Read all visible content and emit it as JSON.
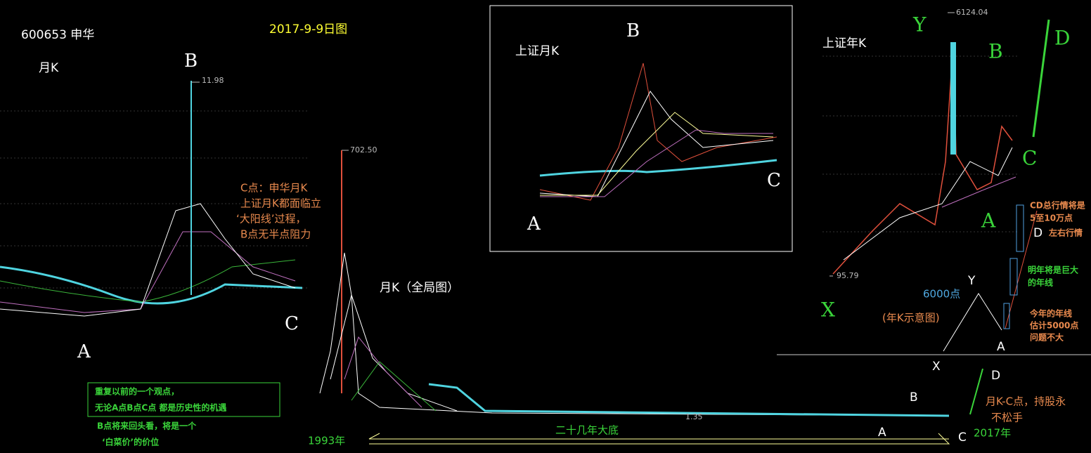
{
  "left": {
    "code": "600653 申华",
    "period": "月K",
    "date": "2017-9-9日图",
    "b": "B",
    "high": "11.98",
    "c": "C",
    "a": "A",
    "note": [
      "C点：申华月K",
      "上证月K都面临立",
      "‘大阳线’过程，",
      "B点无半点阻力"
    ]
  },
  "middle": {
    "high": "702.50",
    "title": "月K（全局图）",
    "low": "1.35",
    "box": [
      "重复以前的一个观点，",
      "无论A点B点C点 都是历史性的机遇"
    ],
    "below": [
      "B点将来回头看，将是一个",
      "‘白菜价’的价位"
    ],
    "start": "1993年",
    "bottom": "二十几年大底",
    "end": "2017年",
    "b": "B",
    "a": "A",
    "c": "C",
    "d": "D",
    "x": "X",
    "note": [
      "月K-C点，持股永",
      "不松手"
    ]
  },
  "inset": {
    "title": "上证月K",
    "b": "B",
    "c": "C",
    "a": "A"
  },
  "right": {
    "title": "上证年K",
    "y": "Y",
    "high": "6124.04",
    "b": "B",
    "d": "D",
    "c": "C",
    "a": "A",
    "low": "95.79",
    "x": "X",
    "cd": [
      "CD总行情将是",
      "5至10万点"
    ],
    "d2": "D",
    "d2note": "左右行情",
    "six": "6000点",
    "y2": "Y",
    "schematic": "(年K示意图)",
    "next": [
      "明年将是巨大",
      "的年线"
    ],
    "year": [
      "今年的年线",
      "估计5000点",
      "问题不大"
    ],
    "a2": "A"
  }
}
